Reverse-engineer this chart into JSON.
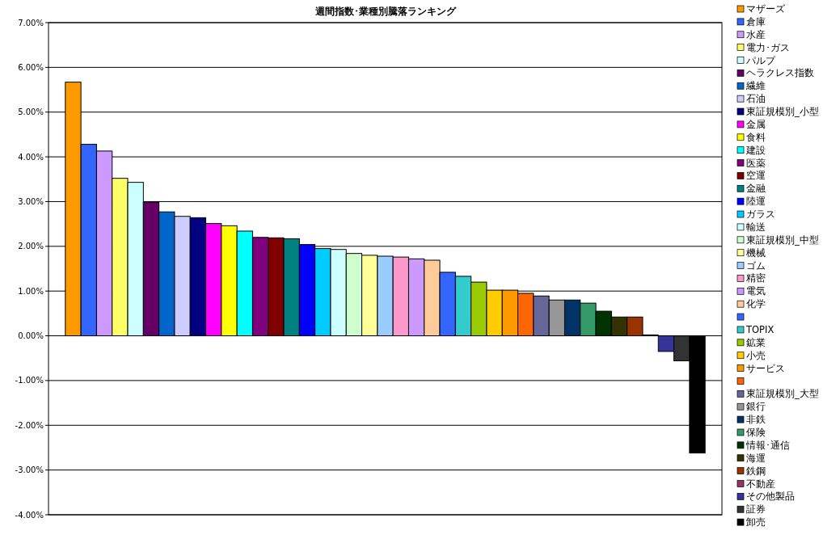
{
  "chart_data": {
    "type": "bar",
    "title": "週間指数･業種別騰落ランキング",
    "categories": [
      null
    ],
    "series": [
      {
        "name": "マザーズ",
        "color": "#ff9900",
        "values": [
          5.67
        ]
      },
      {
        "name": "倉庫",
        "color": "#3366ff",
        "values": [
          4.28
        ]
      },
      {
        "name": "水産",
        "color": "#cc99ff",
        "values": [
          4.13
        ]
      },
      {
        "name": "電力･ガス",
        "color": "#ffff66",
        "values": [
          3.52
        ]
      },
      {
        "name": "パルプ",
        "color": "#ccffff",
        "values": [
          3.43
        ]
      },
      {
        "name": "ヘラクレス指数",
        "color": "#660066",
        "values": [
          2.99
        ]
      },
      {
        "name": "繊維",
        "color": "#0066cc",
        "values": [
          2.77
        ]
      },
      {
        "name": "石油",
        "color": "#ccccff",
        "values": [
          2.67
        ]
      },
      {
        "name": "東証規模別_小型",
        "color": "#000080",
        "values": [
          2.64
        ]
      },
      {
        "name": "金属",
        "color": "#ff00ff",
        "values": [
          2.51
        ]
      },
      {
        "name": "食料",
        "color": "#ffff00",
        "values": [
          2.46
        ]
      },
      {
        "name": "建設",
        "color": "#00ffff",
        "values": [
          2.34
        ]
      },
      {
        "name": "医薬",
        "color": "#800080",
        "values": [
          2.2
        ]
      },
      {
        "name": "空運",
        "color": "#800000",
        "values": [
          2.19
        ]
      },
      {
        "name": "金融",
        "color": "#008080",
        "values": [
          2.17
        ]
      },
      {
        "name": "陸運",
        "color": "#0000ff",
        "values": [
          2.04
        ]
      },
      {
        "name": "ガラス",
        "color": "#00ccff",
        "values": [
          1.95
        ]
      },
      {
        "name": "輸送",
        "color": "#ccffff",
        "values": [
          1.93
        ]
      },
      {
        "name": "東証規模別_中型",
        "color": "#ccffcc",
        "values": [
          1.84
        ]
      },
      {
        "name": "機械",
        "color": "#ffff99",
        "values": [
          1.8
        ]
      },
      {
        "name": "ゴム",
        "color": "#99ccff",
        "values": [
          1.78
        ]
      },
      {
        "name": "精密",
        "color": "#ff99cc",
        "values": [
          1.76
        ]
      },
      {
        "name": "電気",
        "color": "#cc99ff",
        "values": [
          1.72
        ]
      },
      {
        "name": "化学",
        "color": "#ffcc99",
        "values": [
          1.69
        ]
      },
      {
        "color": "#3366ff",
        "values": [
          1.42
        ]
      },
      {
        "name": "TOPIX",
        "color": "#33cccc",
        "values": [
          1.33
        ]
      },
      {
        "name": "鉱業",
        "color": "#99cc00",
        "values": [
          1.2
        ]
      },
      {
        "name": "小売",
        "color": "#ffcc00",
        "values": [
          1.02
        ]
      },
      {
        "name": "サービス",
        "color": "#ff9900",
        "values": [
          1.02
        ]
      },
      {
        "color": "#ff6600",
        "values": [
          0.95
        ]
      },
      {
        "name": "東証規模別_大型",
        "color": "#666699",
        "values": [
          0.89
        ]
      },
      {
        "name": "銀行",
        "color": "#969696",
        "values": [
          0.8
        ]
      },
      {
        "name": "非鉄",
        "color": "#003366",
        "values": [
          0.8
        ]
      },
      {
        "name": "保険",
        "color": "#339966",
        "values": [
          0.73
        ]
      },
      {
        "name": "情報･通信",
        "color": "#003300",
        "values": [
          0.55
        ]
      },
      {
        "name": "海運",
        "color": "#333300",
        "values": [
          0.42
        ]
      },
      {
        "name": "鉄鋼",
        "color": "#993300",
        "values": [
          0.42
        ]
      },
      {
        "name": "不動産",
        "color": "#993366",
        "values": [
          0.02
        ]
      },
      {
        "name": "その他製品",
        "color": "#333399",
        "values": [
          -0.35
        ]
      },
      {
        "name": "証券",
        "color": "#333333",
        "values": [
          -0.56
        ]
      },
      {
        "name": "卸売",
        "color": "#000000",
        "values": [
          -2.62
        ]
      }
    ],
    "ylim": [
      -4,
      7
    ],
    "yticks": [
      {
        "value": -4,
        "label": "-4.00%"
      },
      {
        "value": -3,
        "label": "-3.00%"
      },
      {
        "value": -2,
        "label": "-2.00%"
      },
      {
        "value": -1,
        "label": "-1.00%"
      },
      {
        "value": 0,
        "label": "0.00%"
      },
      {
        "value": 1,
        "label": "1.00%"
      },
      {
        "value": 2,
        "label": "2.00%"
      },
      {
        "value": 3,
        "label": "3.00%"
      },
      {
        "value": 4,
        "label": "4.00%"
      },
      {
        "value": 5,
        "label": "5.00%"
      },
      {
        "value": 6,
        "label": "6.00%"
      },
      {
        "value": 7,
        "label": "7.00%"
      }
    ],
    "grid": "y",
    "legend": "right"
  }
}
